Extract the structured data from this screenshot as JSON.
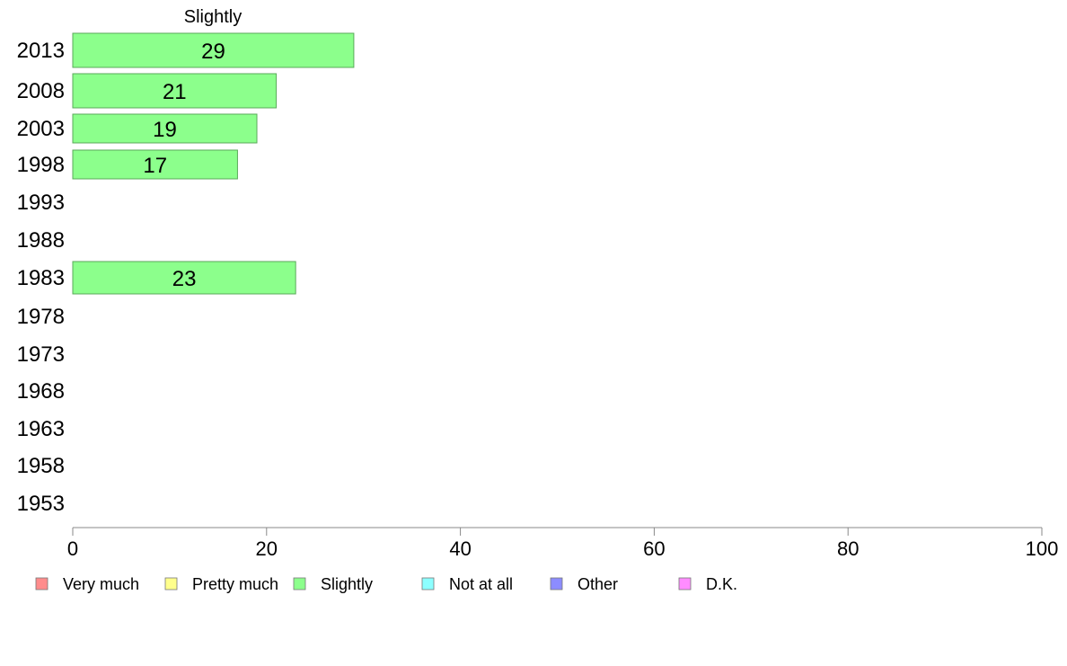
{
  "chart_data": {
    "type": "bar",
    "orientation": "horizontal",
    "title": "Slightly",
    "categories": [
      "2013",
      "2008",
      "2003",
      "1998",
      "1993",
      "1988",
      "1983",
      "1978",
      "1973",
      "1968",
      "1963",
      "1958",
      "1953"
    ],
    "series": [
      {
        "name": "Slightly",
        "values": [
          29,
          21,
          19,
          17,
          null,
          null,
          23,
          null,
          null,
          null,
          null,
          null,
          null
        ]
      }
    ],
    "xlim": [
      0,
      100
    ],
    "xticks": [
      0,
      20,
      40,
      60,
      80,
      100
    ],
    "xlabel": "",
    "ylabel": "",
    "grid": false,
    "legend": {
      "placement": "bottom",
      "entries": [
        {
          "label": "Very much",
          "color": "#ff8c8c"
        },
        {
          "label": "Pretty much",
          "color": "#ffff8c"
        },
        {
          "label": "Slightly",
          "color": "#8cff8c"
        },
        {
          "label": "Not at all",
          "color": "#8cffff"
        },
        {
          "label": "Other",
          "color": "#8c8cff"
        },
        {
          "label": "D.K.",
          "color": "#ff8cff"
        }
      ]
    },
    "bar_color": "#8cff8c",
    "bar_border_color": "#5aaa5a"
  }
}
